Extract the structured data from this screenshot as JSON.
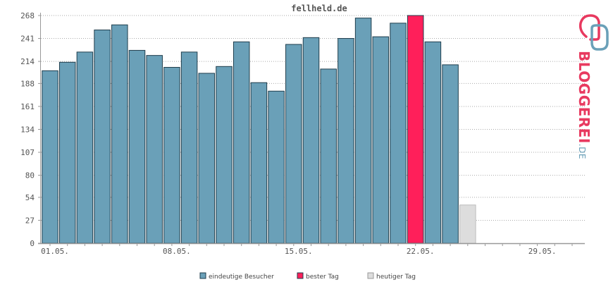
{
  "chart_data": {
    "type": "bar",
    "title": "fellheld.de",
    "ylim": [
      0,
      268
    ],
    "yticks": [
      0,
      27,
      54,
      80,
      107,
      134,
      161,
      188,
      214,
      241,
      268
    ],
    "xtick_labels": [
      {
        "label": "01.05.",
        "index": 0
      },
      {
        "label": "08.05.",
        "index": 7
      },
      {
        "label": "15.05.",
        "index": 14
      },
      {
        "label": "22.05.",
        "index": 21
      },
      {
        "label": "29.05.",
        "index": 28
      }
    ],
    "num_days": 31,
    "series": [
      {
        "name": "eindeutige Besucher",
        "color": "#6aa0b8",
        "values": [
          203,
          213,
          225,
          251,
          257,
          227,
          221,
          207,
          225,
          200,
          208,
          237,
          189,
          179,
          234,
          242,
          205,
          241,
          265,
          243,
          259,
          0,
          237,
          210
        ]
      },
      {
        "name": "bester Tag",
        "color": "#ff1f5a",
        "index": 21,
        "value": 268
      },
      {
        "name": "heutiger Tag",
        "color": "#dddddd",
        "index": 24,
        "value": 45
      }
    ],
    "grid": true,
    "legend_position": "bottom"
  },
  "logo": {
    "text_main": "BLOGGEREI",
    "text_suffix": ".DE",
    "color_main": "#e8395f",
    "color_suffix": "#6aa0b8"
  }
}
